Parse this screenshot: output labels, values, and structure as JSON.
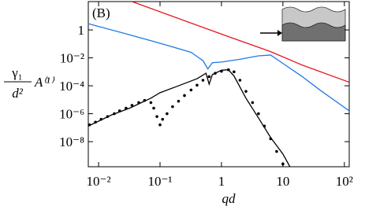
{
  "chart_data": {
    "type": "line",
    "log_x": true,
    "log_y": true,
    "annotation": "(B)",
    "xlabel": "qd",
    "ylabel_numerator": "γ₁",
    "ylabel_denominator": "d²",
    "ylabel_factor": "A⁽¹⁾",
    "xlim": [
      0.0068,
      120
    ],
    "ylim": [
      1.6e-10,
      107
    ],
    "xticks": [
      {
        "value": 0.01,
        "label": "10⁻²"
      },
      {
        "value": 0.1,
        "label": "10⁻¹"
      },
      1,
      10,
      {
        "value": 100,
        "label": "10²"
      }
    ],
    "yticks": [
      1,
      {
        "value": 0.01,
        "label": "10⁻²"
      },
      {
        "value": 0.0001,
        "label": "10⁻⁴"
      },
      {
        "value": 1e-06,
        "label": "10⁻⁶"
      },
      {
        "value": 1e-08,
        "label": "10⁻⁸"
      }
    ],
    "series": [
      {
        "color": "#e8141e",
        "style": "solid",
        "x": [
          0.035,
          1,
          6.3,
          20,
          120
        ],
        "values": [
          107,
          0.5,
          0.028,
          0.0032,
          0.00018
        ]
      },
      {
        "color": "#1e78e6",
        "style": "solid",
        "x": [
          0.0068,
          0.032,
          0.1,
          0.32,
          0.5,
          0.6,
          0.71,
          1,
          2,
          4,
          6.3,
          10,
          20,
          40,
          120
        ],
        "values": [
          2.8,
          0.45,
          0.11,
          0.025,
          0.0063,
          0.0016,
          0.0045,
          0.005,
          0.0079,
          0.014,
          0.016,
          0.004,
          0.0005,
          5e-05,
          1.6e-06
        ]
      },
      {
        "color": "#000000",
        "style": "solid",
        "x": [
          0.0068,
          0.016,
          0.032,
          0.05,
          0.071,
          0.1,
          0.2,
          0.4,
          0.56,
          0.63,
          0.71,
          1,
          1.3,
          1.6,
          2.5,
          4,
          6.3,
          10,
          13
        ],
        "values": [
          1.3e-07,
          7.9e-07,
          2.5e-06,
          6.3e-06,
          1.3e-05,
          3.2e-05,
          0.0001,
          0.00032,
          0.00079,
          0.00013,
          0.00063,
          0.0013,
          0.0014,
          0.0005,
          1.3e-05,
          5e-07,
          2e-08,
          1.3e-09,
          1.6e-10
        ]
      },
      {
        "color": "#000000",
        "style": "dotted",
        "x": [
          0.0071,
          0.0089,
          0.011,
          0.014,
          0.018,
          0.022,
          0.028,
          0.035,
          0.045,
          0.056,
          0.071,
          0.079,
          0.089,
          0.1,
          0.11,
          0.13,
          0.16,
          0.2,
          0.25,
          0.32,
          0.4,
          0.5,
          0.63,
          0.79,
          1,
          1.3,
          1.6,
          2,
          2.5,
          3.2,
          4,
          5,
          6.3,
          7.9,
          10
        ],
        "values": [
          1.6e-07,
          2.5e-07,
          4e-07,
          6.3e-07,
          1e-06,
          1.6e-06,
          2.5e-06,
          4e-06,
          6.3e-06,
          8.9e-06,
          6.3e-06,
          2.5e-06,
          6.3e-07,
          1.6e-07,
          4e-07,
          1e-06,
          3.2e-06,
          7.9e-06,
          2e-05,
          5e-05,
          0.00011,
          0.00025,
          0.00045,
          0.00079,
          0.0011,
          0.0014,
          0.001,
          0.00025,
          4e-05,
          6.3e-06,
          1e-06,
          1.3e-07,
          1.6e-08,
          2e-09,
          2.5e-10
        ]
      }
    ]
  }
}
